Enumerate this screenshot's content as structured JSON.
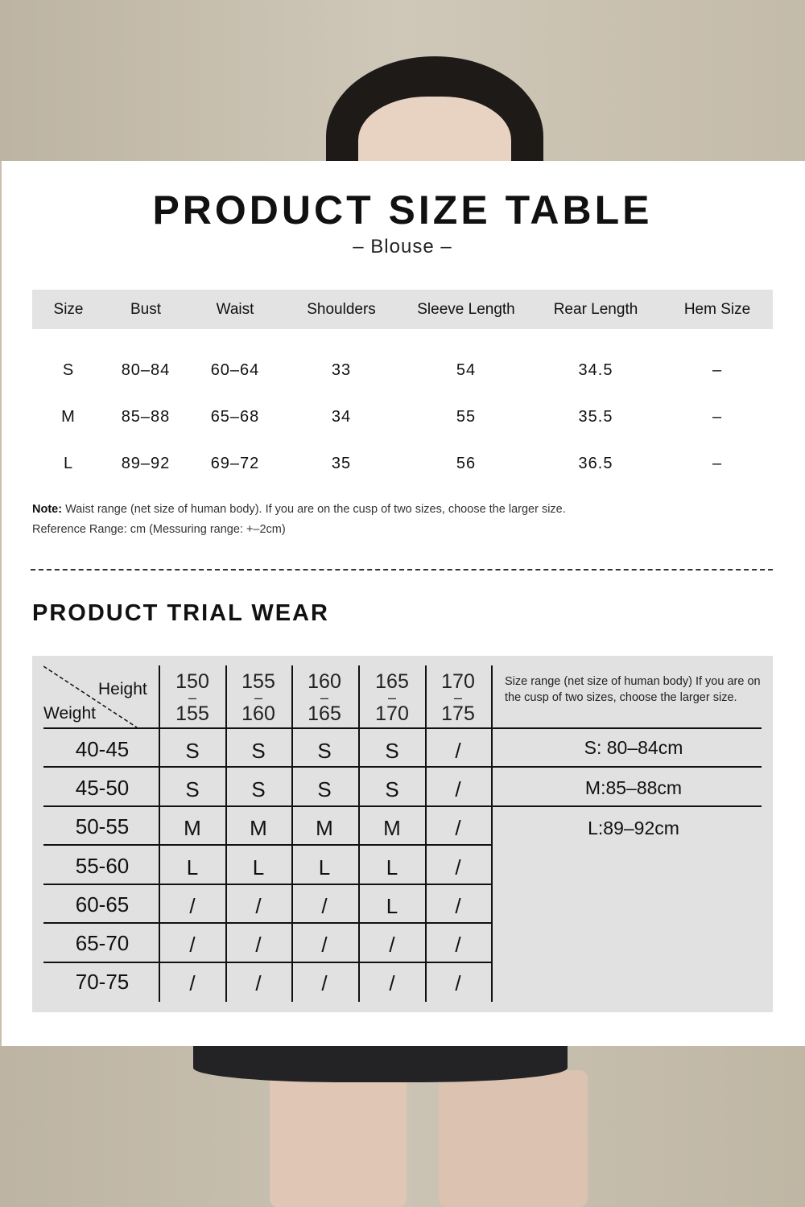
{
  "title": "PRODUCT SIZE TABLE",
  "subtitle": "– Blouse –",
  "size_table": {
    "headers": [
      "Size",
      "Bust",
      "Waist",
      "Shoulders",
      "Sleeve Length",
      "Rear Length",
      "Hem Size"
    ],
    "rows": [
      [
        "S",
        "80–84",
        "60–64",
        "33",
        "54",
        "34.5",
        "–"
      ],
      [
        "M",
        "85–88",
        "65–68",
        "34",
        "55",
        "35.5",
        "–"
      ],
      [
        "L",
        "89–92",
        "69–72",
        "35",
        "56",
        "36.5",
        "–"
      ]
    ]
  },
  "note": {
    "label": "Note:",
    "text": " Waist range (net size of human body). If you are on the cusp of two sizes, choose the larger size.",
    "reference": "Reference Range: cm (Messuring range: +–2cm)"
  },
  "trial": {
    "title": "PRODUCT TRIAL WEAR",
    "corner_height": "Height",
    "corner_weight": "Weight",
    "heights": [
      [
        "150",
        "155"
      ],
      [
        "155",
        "160"
      ],
      [
        "160",
        "165"
      ],
      [
        "165",
        "170"
      ],
      [
        "170",
        "175"
      ]
    ],
    "info": "Size range (net size of human body) If you are on the cusp of two sizes, choose the larger size.",
    "weights": [
      "40-45",
      "45-50",
      "50-55",
      "55-60",
      "60-65",
      "65-70",
      "70-75"
    ],
    "cells": [
      [
        "S",
        "S",
        "S",
        "S",
        "/"
      ],
      [
        "S",
        "S",
        "S",
        "S",
        "/"
      ],
      [
        "M",
        "M",
        "M",
        "M",
        "/"
      ],
      [
        "L",
        "L",
        "L",
        "L",
        "/"
      ],
      [
        "/",
        "/",
        "/",
        "L",
        "/"
      ],
      [
        "/",
        "/",
        "/",
        "/",
        "/"
      ],
      [
        "/",
        "/",
        "/",
        "/",
        "/"
      ]
    ],
    "ranges": [
      "S: 80–84cm",
      "M:85–88cm",
      "L:89–92cm"
    ]
  }
}
